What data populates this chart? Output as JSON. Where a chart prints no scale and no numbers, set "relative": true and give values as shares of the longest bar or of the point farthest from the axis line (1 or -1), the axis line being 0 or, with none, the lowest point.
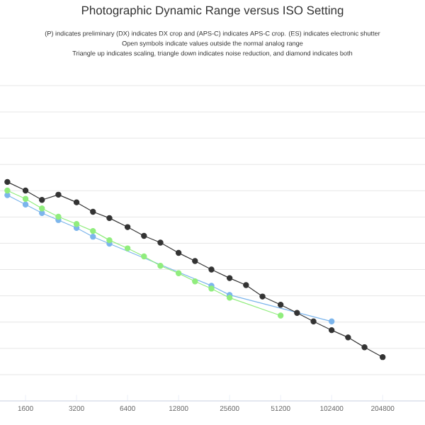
{
  "chart_data": {
    "type": "line",
    "title": "Photographic Dynamic Range versus ISO Setting",
    "subtitle": "(P) indicates preliminary (DX) indicates DX crop and (APS-C) indicates APS-C crop. (ES) indicates electronic shutter",
    "annotations": [
      "Open symbols indicate values outside the normal analog range",
      "Triangle up indicates scaling, triangle down indicates noise reduction, and diamond indicates both"
    ],
    "relative": true,
    "log": "x",
    "grid": "y",
    "tick_labels": "x",
    "marker": "circle",
    "xlim": [
      1131,
      364000
    ],
    "xticks": [
      1600,
      3200,
      6400,
      12800,
      25600,
      51200,
      102400,
      204800
    ],
    "series": [
      {
        "color": "#7cb5ec",
        "x": [
          1250,
          1600,
          2000,
          2500,
          3200,
          4000,
          5000,
          6400,
          8000,
          10000,
          12800,
          16000,
          20000,
          25600,
          51200,
          102400
        ],
        "values": [
          0.94,
          0.897,
          0.858,
          0.826,
          0.79,
          0.75,
          0.718,
          null,
          null,
          null,
          null,
          null,
          0.526,
          0.484,
          null,
          0.363
        ]
      },
      {
        "color": "#90ed7d",
        "x": [
          1250,
          1600,
          2000,
          2500,
          3200,
          4000,
          5000,
          6400,
          8000,
          10000,
          12800,
          16000,
          20000,
          25600,
          51200
        ],
        "values": [
          0.961,
          0.923,
          0.879,
          0.841,
          0.808,
          0.776,
          0.734,
          0.697,
          0.66,
          0.617,
          0.583,
          0.546,
          0.513,
          0.471,
          0.39
        ]
      },
      {
        "color": "#333333",
        "x": [
          1250,
          1600,
          2000,
          2500,
          3200,
          4000,
          5000,
          6400,
          8000,
          10000,
          12800,
          16000,
          20000,
          25600,
          32000,
          40000,
          51200,
          64000,
          80000,
          102400,
          128000,
          160000,
          204800
        ],
        "values": [
          1.0,
          0.961,
          0.918,
          0.942,
          0.907,
          0.864,
          0.835,
          0.794,
          0.754,
          0.723,
          0.676,
          0.639,
          0.6,
          0.561,
          0.529,
          0.477,
          0.439,
          0.402,
          0.363,
          0.323,
          0.29,
          0.245,
          0.2
        ]
      }
    ]
  }
}
